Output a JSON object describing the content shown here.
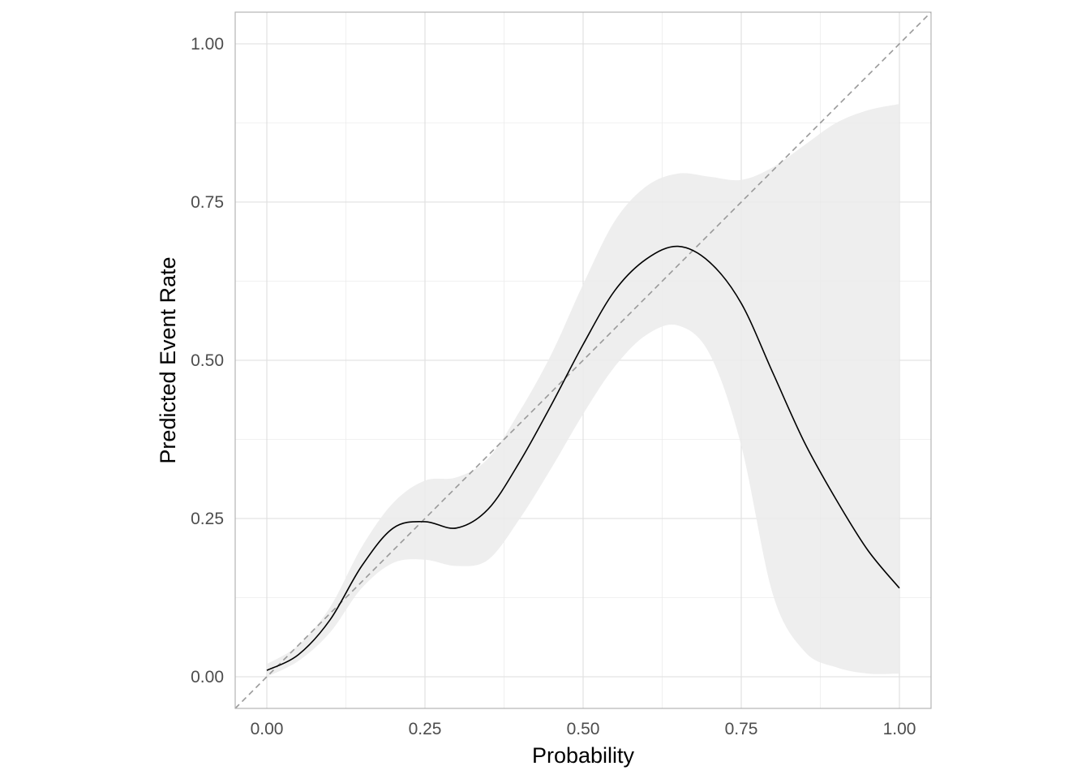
{
  "chart_data": {
    "type": "line",
    "title": "",
    "xlabel": "Probability",
    "ylabel": "Predicted Event Rate",
    "xlim": [
      -0.05,
      1.05
    ],
    "ylim": [
      -0.05,
      1.05
    ],
    "x_ticks": [
      0.0,
      0.25,
      0.5,
      0.75,
      1.0
    ],
    "x_tick_labels": [
      "0.00",
      "0.25",
      "0.50",
      "0.75",
      "1.00"
    ],
    "y_ticks": [
      0.0,
      0.25,
      0.5,
      0.75,
      1.0
    ],
    "y_tick_labels": [
      "0.00",
      "0.25",
      "0.50",
      "0.75",
      "1.00"
    ],
    "grid": true,
    "reference_line": {
      "type": "identity",
      "style": "dashed",
      "color": "#999999",
      "from": [
        -0.05,
        -0.05
      ],
      "to": [
        1.05,
        1.05
      ]
    },
    "series": [
      {
        "style": "solid",
        "color": "#000000",
        "x": [
          0.0,
          0.05,
          0.1,
          0.15,
          0.2,
          0.25,
          0.3,
          0.35,
          0.4,
          0.45,
          0.5,
          0.55,
          0.6,
          0.65,
          0.7,
          0.75,
          0.8,
          0.85,
          0.9,
          0.95,
          1.0
        ],
        "y": [
          0.01,
          0.035,
          0.09,
          0.175,
          0.235,
          0.245,
          0.235,
          0.265,
          0.34,
          0.43,
          0.525,
          0.61,
          0.66,
          0.68,
          0.655,
          0.59,
          0.48,
          0.37,
          0.28,
          0.2,
          0.14
        ],
        "lower": [
          0.0,
          0.025,
          0.07,
          0.14,
          0.18,
          0.185,
          0.175,
          0.185,
          0.25,
          0.33,
          0.415,
          0.49,
          0.54,
          0.555,
          0.51,
          0.365,
          0.13,
          0.04,
          0.015,
          0.005,
          0.005
        ],
        "upper": [
          0.02,
          0.05,
          0.11,
          0.205,
          0.275,
          0.31,
          0.315,
          0.345,
          0.42,
          0.51,
          0.62,
          0.72,
          0.775,
          0.795,
          0.79,
          0.785,
          0.805,
          0.84,
          0.875,
          0.895,
          0.905
        ],
        "band_color": "#ebebeb"
      }
    ]
  }
}
